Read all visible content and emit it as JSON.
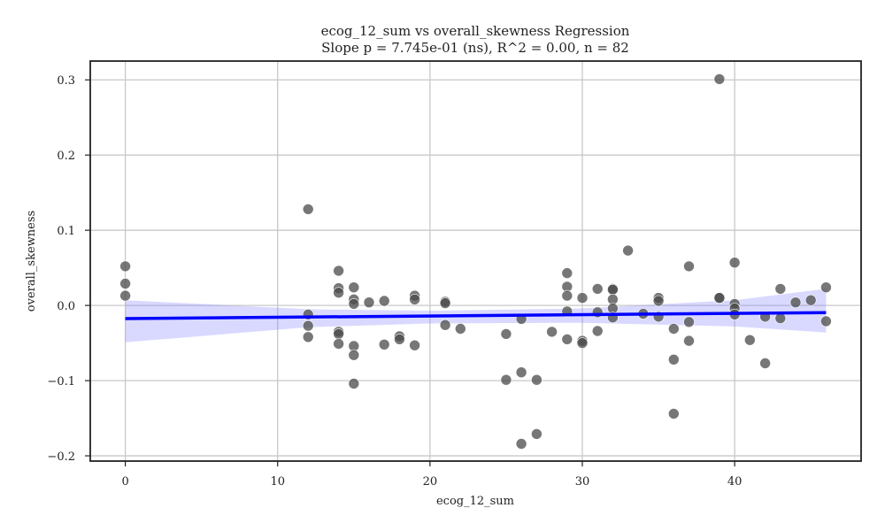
{
  "chart_data": {
    "type": "scatter",
    "title": "ecog_12_sum vs overall_skewness Regression",
    "subtitle": "Slope p = 7.745e-01 (ns), R^2 = 0.00, n = 82",
    "xlabel": "ecog_12_sum",
    "ylabel": "overall_skewness",
    "xlim": [
      -2.3,
      48.3
    ],
    "ylim": [
      -0.207,
      0.325
    ],
    "x_ticks": [
      0,
      10,
      20,
      30,
      40
    ],
    "x_tick_labels": [
      "0",
      "10",
      "20",
      "30",
      "40"
    ],
    "y_ticks": [
      -0.2,
      -0.1,
      0.0,
      0.1,
      0.2,
      0.3
    ],
    "y_tick_labels": [
      "−0.2",
      "−0.1",
      "0.0",
      "0.1",
      "0.2",
      "0.3"
    ],
    "grid": true,
    "colors": {
      "points": "#4a4a4a",
      "fit_line": "#0000ff",
      "confidence_band": "#8080ff"
    },
    "regression": {
      "x": [
        0,
        46
      ],
      "y": [
        -0.0175,
        -0.0095
      ],
      "ci_x": [
        0,
        12,
        20,
        30,
        40,
        46
      ],
      "ci_lower": [
        -0.049,
        -0.029,
        -0.024,
        -0.023,
        -0.028,
        -0.036
      ],
      "ci_upper": [
        0.007,
        -0.005,
        -0.007,
        -0.004,
        0.007,
        0.022
      ]
    },
    "points": [
      {
        "x": 0,
        "y": 0.052
      },
      {
        "x": 0,
        "y": 0.029
      },
      {
        "x": 0,
        "y": 0.013
      },
      {
        "x": 12,
        "y": 0.128
      },
      {
        "x": 12,
        "y": -0.012
      },
      {
        "x": 12,
        "y": -0.027
      },
      {
        "x": 12,
        "y": -0.042
      },
      {
        "x": 14,
        "y": 0.046
      },
      {
        "x": 14,
        "y": 0.023
      },
      {
        "x": 14,
        "y": 0.017
      },
      {
        "x": 14,
        "y": -0.035
      },
      {
        "x": 14,
        "y": -0.038
      },
      {
        "x": 14,
        "y": -0.051
      },
      {
        "x": 15,
        "y": 0.024
      },
      {
        "x": 15,
        "y": 0.008
      },
      {
        "x": 15,
        "y": 0.002
      },
      {
        "x": 15,
        "y": -0.054
      },
      {
        "x": 15,
        "y": -0.066
      },
      {
        "x": 15,
        "y": -0.104
      },
      {
        "x": 16,
        "y": 0.004
      },
      {
        "x": 17,
        "y": 0.006
      },
      {
        "x": 17,
        "y": -0.052
      },
      {
        "x": 18,
        "y": -0.041
      },
      {
        "x": 18,
        "y": -0.045
      },
      {
        "x": 19,
        "y": 0.013
      },
      {
        "x": 19,
        "y": 0.008
      },
      {
        "x": 19,
        "y": -0.053
      },
      {
        "x": 21,
        "y": 0.005
      },
      {
        "x": 21,
        "y": 0.003
      },
      {
        "x": 21,
        "y": -0.026
      },
      {
        "x": 22,
        "y": -0.031
      },
      {
        "x": 25,
        "y": -0.038
      },
      {
        "x": 25,
        "y": -0.099
      },
      {
        "x": 26,
        "y": -0.018
      },
      {
        "x": 26,
        "y": -0.089
      },
      {
        "x": 26,
        "y": -0.184
      },
      {
        "x": 27,
        "y": -0.099
      },
      {
        "x": 27,
        "y": -0.171
      },
      {
        "x": 28,
        "y": -0.035
      },
      {
        "x": 29,
        "y": 0.043
      },
      {
        "x": 29,
        "y": 0.025
      },
      {
        "x": 29,
        "y": 0.013
      },
      {
        "x": 29,
        "y": -0.008
      },
      {
        "x": 29,
        "y": -0.045
      },
      {
        "x": 30,
        "y": 0.01
      },
      {
        "x": 30,
        "y": -0.047
      },
      {
        "x": 30,
        "y": -0.05
      },
      {
        "x": 31,
        "y": 0.022
      },
      {
        "x": 31,
        "y": -0.009
      },
      {
        "x": 31,
        "y": -0.034
      },
      {
        "x": 32,
        "y": 0.022
      },
      {
        "x": 32,
        "y": 0.021
      },
      {
        "x": 32,
        "y": 0.008
      },
      {
        "x": 32,
        "y": -0.004
      },
      {
        "x": 32,
        "y": -0.016
      },
      {
        "x": 33,
        "y": 0.073
      },
      {
        "x": 34,
        "y": -0.011
      },
      {
        "x": 35,
        "y": 0.01
      },
      {
        "x": 35,
        "y": 0.006
      },
      {
        "x": 35,
        "y": -0.015
      },
      {
        "x": 36,
        "y": -0.031
      },
      {
        "x": 36,
        "y": -0.072
      },
      {
        "x": 36,
        "y": -0.144
      },
      {
        "x": 37,
        "y": 0.052
      },
      {
        "x": 37,
        "y": -0.022
      },
      {
        "x": 37,
        "y": -0.047
      },
      {
        "x": 39,
        "y": 0.301
      },
      {
        "x": 39,
        "y": 0.01
      },
      {
        "x": 40,
        "y": 0.057
      },
      {
        "x": 40,
        "y": 0.002
      },
      {
        "x": 40,
        "y": -0.004
      },
      {
        "x": 40,
        "y": -0.012
      },
      {
        "x": 41,
        "y": -0.046
      },
      {
        "x": 42,
        "y": -0.015
      },
      {
        "x": 42,
        "y": -0.077
      },
      {
        "x": 43,
        "y": 0.022
      },
      {
        "x": 43,
        "y": -0.017
      },
      {
        "x": 44,
        "y": 0.004
      },
      {
        "x": 45,
        "y": 0.007
      },
      {
        "x": 46,
        "y": 0.024
      },
      {
        "x": 46,
        "y": -0.021
      },
      {
        "x": 39,
        "y": 0.01
      }
    ]
  }
}
